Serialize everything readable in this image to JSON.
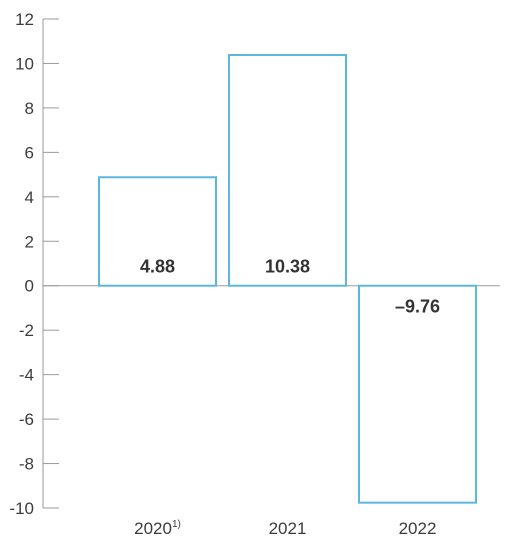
{
  "chart_data": {
    "type": "bar",
    "categories": [
      "2020",
      "2021",
      "2022"
    ],
    "category_notes": [
      "1)",
      "",
      ""
    ],
    "values": [
      4.88,
      10.38,
      -9.76
    ],
    "data_labels": [
      "4.88",
      "10.38",
      "–9.76"
    ],
    "ylim": [
      -10,
      12
    ],
    "yticks": [
      12,
      10,
      8,
      6,
      4,
      2,
      0,
      -2,
      -4,
      -6,
      -8,
      -10
    ],
    "grid": false,
    "bar_style": "outline",
    "colors": {
      "bar_stroke": "#5bb8dc",
      "axis": "#9a9a9a",
      "text": "#3c3c3c"
    }
  }
}
